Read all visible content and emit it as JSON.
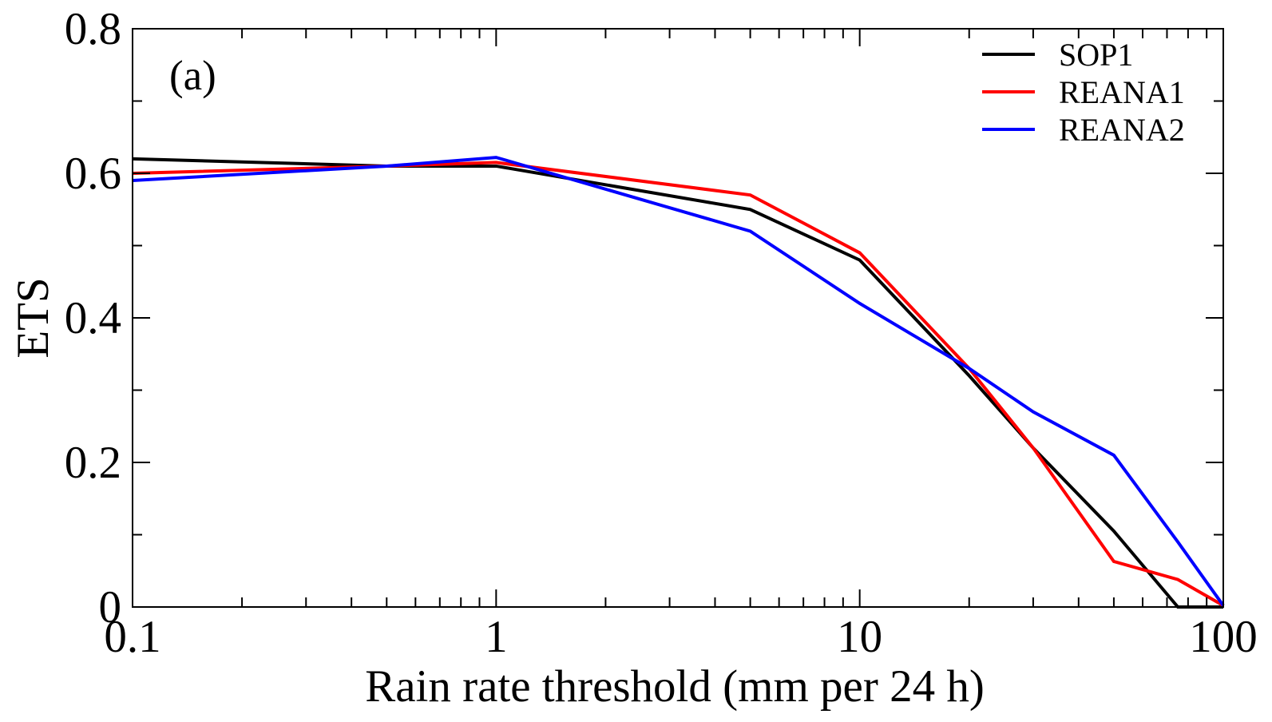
{
  "chart_data": {
    "type": "line",
    "title": "",
    "panel_label": "(a)",
    "xlabel": "Rain rate threshold (mm per 24 h)",
    "ylabel": "ETS",
    "xscale": "log",
    "xlim": [
      0.1,
      100
    ],
    "ylim": [
      0,
      0.8
    ],
    "x_ticks": [
      0.1,
      1,
      10,
      100
    ],
    "x_tick_labels": [
      "0.1",
      "1",
      "10",
      "100"
    ],
    "y_ticks": [
      0,
      0.2,
      0.4,
      0.6,
      0.8
    ],
    "y_tick_labels": [
      "0",
      "0.2",
      "0.4",
      "0.6",
      "0.8"
    ],
    "grid": false,
    "legend_position": "top-right",
    "series": [
      {
        "name": "SOP1",
        "color": "#000000",
        "x": [
          0.1,
          0.5,
          1,
          5,
          10,
          20,
          30,
          50,
          75,
          100
        ],
        "y": [
          0.62,
          0.61,
          0.61,
          0.55,
          0.48,
          0.32,
          0.22,
          0.105,
          0.0,
          0.0
        ]
      },
      {
        "name": "REANA1",
        "color": "#ff0000",
        "x": [
          0.1,
          0.5,
          1,
          5,
          10,
          20,
          30,
          50,
          75,
          100
        ],
        "y": [
          0.6,
          0.61,
          0.615,
          0.57,
          0.49,
          0.33,
          0.22,
          0.063,
          0.038,
          0.002
        ]
      },
      {
        "name": "REANA2",
        "color": "#0000ff",
        "x": [
          0.1,
          0.5,
          1,
          5,
          10,
          20,
          30,
          50,
          75,
          100
        ],
        "y": [
          0.59,
          0.61,
          0.622,
          0.52,
          0.42,
          0.33,
          0.27,
          0.21,
          0.09,
          0.002
        ]
      }
    ]
  }
}
